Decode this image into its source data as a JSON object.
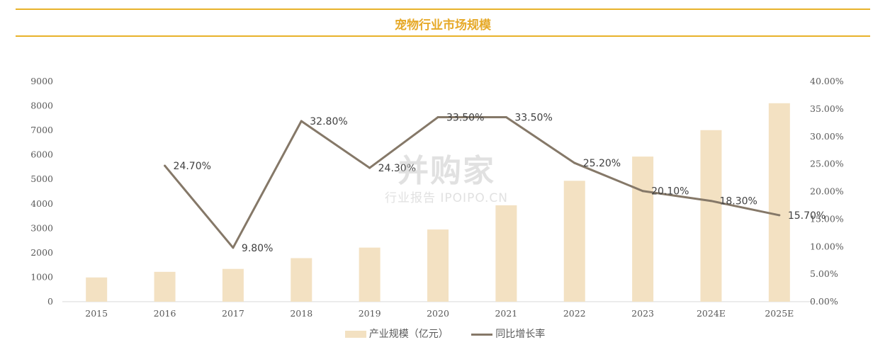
{
  "title": "宠物行业市场规模",
  "legend": {
    "bar": "产业规模（亿元）",
    "line": "同比增长率"
  },
  "watermark": {
    "main": "并购家",
    "sub": "行业报告 IPOIPO.CN"
  },
  "colors": {
    "accent": "#E8B22A",
    "bar": "#F3E1C2",
    "line": "#857868"
  },
  "chart_data": {
    "type": "bar",
    "categories": [
      "2015",
      "2016",
      "2017",
      "2018",
      "2019",
      "2020",
      "2021",
      "2022",
      "2023",
      "2024E",
      "2025E"
    ],
    "series": [
      {
        "name": "产业规模（亿元）",
        "type": "bar",
        "axis": "left",
        "values": [
          990,
          1220,
          1340,
          1780,
          2210,
          2950,
          3940,
          4940,
          5930,
          7010,
          8110
        ]
      },
      {
        "name": "同比增长率",
        "type": "line",
        "axis": "right",
        "values": [
          null,
          24.7,
          9.8,
          32.8,
          24.3,
          33.5,
          33.5,
          25.2,
          20.1,
          18.3,
          15.7
        ],
        "labels": [
          null,
          "24.70%",
          "9.80%",
          "32.80%",
          "24.30%",
          "33.50%",
          "33.50%",
          "25.20%",
          "20.10%",
          "18.30%",
          "15.70%"
        ]
      }
    ],
    "y_left": {
      "min": 0,
      "max": 9000,
      "ticks": [
        "0",
        "1000",
        "2000",
        "3000",
        "4000",
        "5000",
        "6000",
        "7000",
        "8000",
        "9000"
      ]
    },
    "y_right": {
      "min": 0,
      "max": 40,
      "ticks": [
        "0.00%",
        "5.00%",
        "10.00%",
        "15.00%",
        "20.00%",
        "25.00%",
        "30.00%",
        "35.00%",
        "40.00%"
      ]
    },
    "grid": false,
    "legend_position": "bottom"
  }
}
